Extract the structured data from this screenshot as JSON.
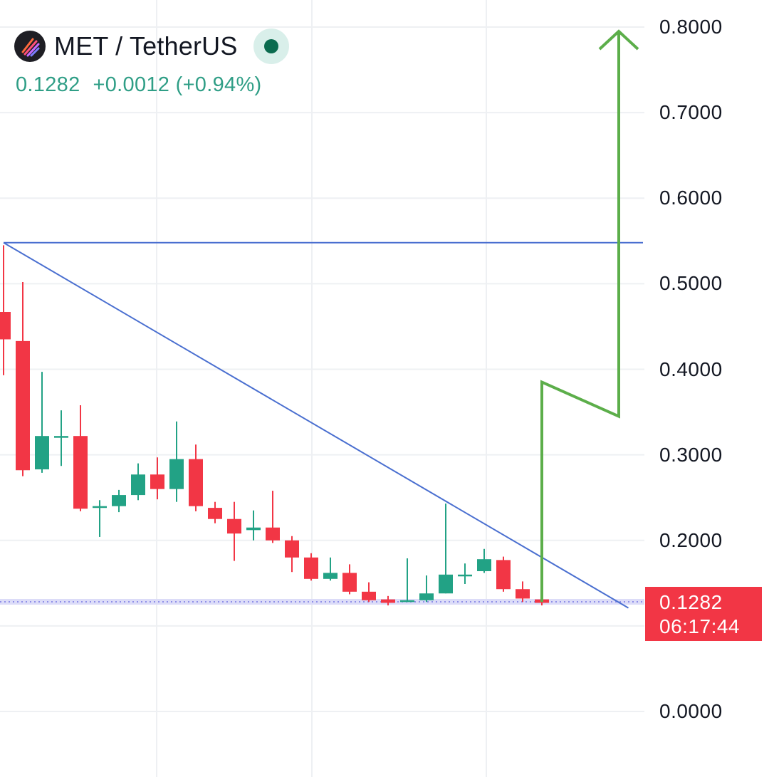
{
  "header": {
    "symbol": "MET / TetherUS",
    "price": "0.1282",
    "change": "+0.0012",
    "change_pct": "(+0.94%)"
  },
  "price_tag": {
    "price": "0.1282",
    "countdown": "06:17:44"
  },
  "colors": {
    "up": "#22a285",
    "down": "#f23645",
    "trendline": "#4a6fd0",
    "arrow": "#5cae4a",
    "grid": "#eef0f3",
    "current_price_line": "#8f8fe8"
  },
  "chart_data": {
    "type": "candlestick",
    "y_axis": {
      "min": 0.0,
      "max": 0.8,
      "ticks": [
        "0.8000",
        "0.7000",
        "0.6000",
        "0.5000",
        "0.4000",
        "0.3000",
        "0.2000",
        "0.0000"
      ]
    },
    "grid": true,
    "candles": [
      {
        "o": 0.467,
        "h": 0.545,
        "l": 0.393,
        "c": 0.435
      },
      {
        "o": 0.433,
        "h": 0.502,
        "l": 0.275,
        "c": 0.282
      },
      {
        "o": 0.283,
        "h": 0.397,
        "l": 0.279,
        "c": 0.322
      },
      {
        "o": 0.322,
        "h": 0.352,
        "l": 0.287,
        "c": 0.322
      },
      {
        "o": 0.322,
        "h": 0.358,
        "l": 0.234,
        "c": 0.237
      },
      {
        "o": 0.238,
        "h": 0.247,
        "l": 0.204,
        "c": 0.24
      },
      {
        "o": 0.24,
        "h": 0.259,
        "l": 0.233,
        "c": 0.253
      },
      {
        "o": 0.253,
        "h": 0.29,
        "l": 0.247,
        "c": 0.277
      },
      {
        "o": 0.277,
        "h": 0.297,
        "l": 0.248,
        "c": 0.26
      },
      {
        "o": 0.26,
        "h": 0.339,
        "l": 0.245,
        "c": 0.295
      },
      {
        "o": 0.295,
        "h": 0.312,
        "l": 0.234,
        "c": 0.24
      },
      {
        "o": 0.238,
        "h": 0.245,
        "l": 0.22,
        "c": 0.225
      },
      {
        "o": 0.225,
        "h": 0.245,
        "l": 0.176,
        "c": 0.208
      },
      {
        "o": 0.212,
        "h": 0.235,
        "l": 0.2,
        "c": 0.215
      },
      {
        "o": 0.215,
        "h": 0.258,
        "l": 0.197,
        "c": 0.2
      },
      {
        "o": 0.2,
        "h": 0.205,
        "l": 0.163,
        "c": 0.18
      },
      {
        "o": 0.18,
        "h": 0.185,
        "l": 0.153,
        "c": 0.155
      },
      {
        "o": 0.155,
        "h": 0.18,
        "l": 0.153,
        "c": 0.162
      },
      {
        "o": 0.162,
        "h": 0.172,
        "l": 0.137,
        "c": 0.14
      },
      {
        "o": 0.14,
        "h": 0.151,
        "l": 0.128,
        "c": 0.13
      },
      {
        "o": 0.131,
        "h": 0.135,
        "l": 0.124,
        "c": 0.127
      },
      {
        "o": 0.128,
        "h": 0.179,
        "l": 0.128,
        "c": 0.13
      },
      {
        "o": 0.13,
        "h": 0.159,
        "l": 0.128,
        "c": 0.138
      },
      {
        "o": 0.138,
        "h": 0.243,
        "l": 0.138,
        "c": 0.16
      },
      {
        "o": 0.16,
        "h": 0.173,
        "l": 0.149,
        "c": 0.16
      },
      {
        "o": 0.164,
        "h": 0.19,
        "l": 0.162,
        "c": 0.178
      },
      {
        "o": 0.177,
        "h": 0.181,
        "l": 0.14,
        "c": 0.143
      },
      {
        "o": 0.143,
        "h": 0.152,
        "l": 0.128,
        "c": 0.132
      },
      {
        "o": 0.131,
        "h": 0.134,
        "l": 0.124,
        "c": 0.127
      }
    ],
    "horizontal_line": 0.548,
    "trendline": [
      {
        "candle": 0,
        "price": 0.548
      },
      {
        "candle": 32.5,
        "price": 0.121
      }
    ],
    "current_price": 0.1282,
    "projection_arrow": [
      {
        "candle": 28,
        "price": 0.128
      },
      {
        "candle": 28,
        "price": 0.385
      },
      {
        "candle": 32,
        "price": 0.345
      },
      {
        "candle": 32,
        "price": 0.795
      }
    ]
  }
}
